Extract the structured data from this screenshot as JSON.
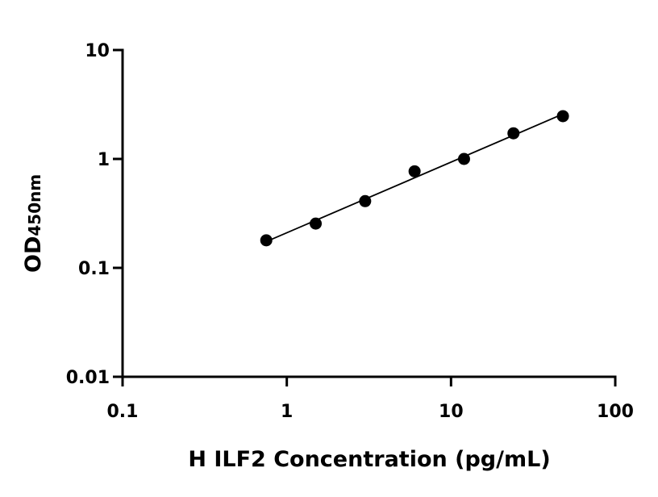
{
  "chart_data": {
    "type": "scatter",
    "xlabel": "H ILF2 Concentration (pg/mL)",
    "ylabel": "OD",
    "ylabel_sub": "450nm",
    "x": [
      0.75,
      1.5,
      3,
      6,
      12,
      24,
      48
    ],
    "series": [
      {
        "color": "#000000",
        "values": [
          0.179,
          0.255,
          0.41,
          0.77,
          1.0,
          1.72,
          2.47
        ]
      }
    ],
    "fit": "linear-log-log",
    "xlog": true,
    "ylog": true,
    "xlim": [
      0.1,
      100
    ],
    "ylim": [
      0.01,
      10
    ],
    "xticks": [
      0.1,
      1,
      10,
      100
    ],
    "yticks": [
      0.01,
      0.1,
      1,
      10
    ]
  }
}
